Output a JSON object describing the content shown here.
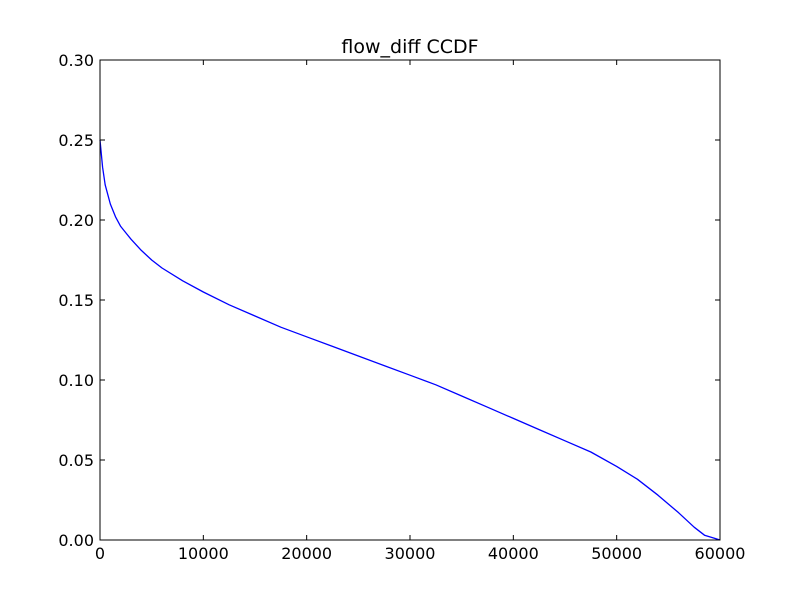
{
  "chart_data": {
    "type": "line",
    "title": "flow_diff CCDF",
    "xlabel": "",
    "ylabel": "",
    "xlim": [
      0,
      60000
    ],
    "ylim": [
      0,
      0.3
    ],
    "x_ticks": [
      "0",
      "10000",
      "20000",
      "30000",
      "40000",
      "50000",
      "60000"
    ],
    "y_ticks": [
      "0.00",
      "0.05",
      "0.10",
      "0.15",
      "0.20",
      "0.25",
      "0.30"
    ],
    "grid": false,
    "legend": "none",
    "series": [
      {
        "color": "#0000ff",
        "x": [
          0,
          250,
          500,
          1000,
          1500,
          2000,
          3000,
          4000,
          5000,
          6000,
          8000,
          10000,
          12500,
          15000,
          17500,
          20000,
          22500,
          25000,
          27500,
          30000,
          32500,
          35000,
          37500,
          40000,
          42500,
          45000,
          47500,
          50000,
          52000,
          54000,
          56000,
          57500,
          58500,
          59500,
          60000
        ],
        "y": [
          0.25,
          0.233,
          0.222,
          0.21,
          0.202,
          0.196,
          0.188,
          0.181,
          0.175,
          0.17,
          0.162,
          0.155,
          0.147,
          0.14,
          0.133,
          0.127,
          0.121,
          0.115,
          0.109,
          0.103,
          0.097,
          0.09,
          0.083,
          0.076,
          0.069,
          0.062,
          0.055,
          0.046,
          0.038,
          0.028,
          0.017,
          0.008,
          0.003,
          0.001,
          0.0
        ]
      }
    ]
  }
}
